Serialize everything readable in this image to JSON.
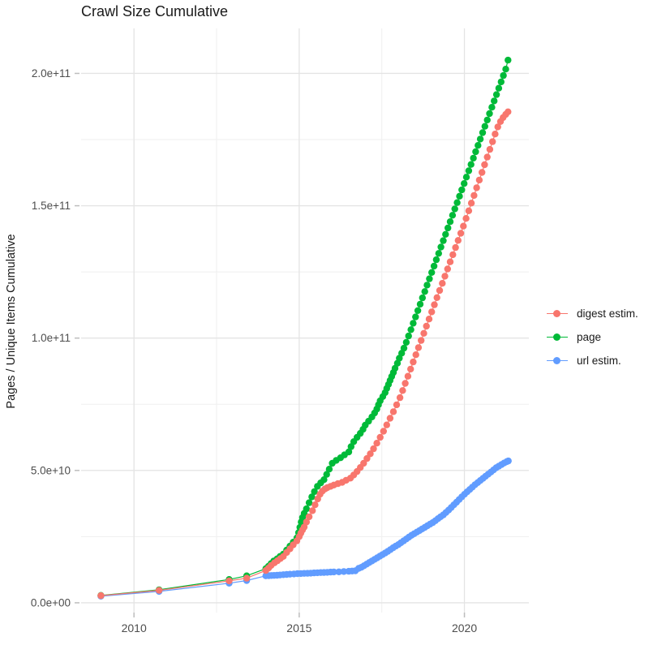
{
  "chart_data": {
    "type": "line",
    "title": "Crawl Size Cumulative",
    "xlabel": "",
    "ylabel": "Pages / Unique Items Cumulative",
    "legend_position": "right",
    "grid": true,
    "unit": "pages (values stored in billions, 1e9)",
    "x_domain": [
      2008.4,
      2021.95
    ],
    "y_domain_e9": [
      -3.7,
      217
    ],
    "x_ticks": [
      {
        "label": "2010",
        "year": 2010
      },
      {
        "label": "2015",
        "year": 2015
      },
      {
        "label": "2020",
        "year": 2020
      }
    ],
    "x_minor": [
      2012.5,
      2017.5
    ],
    "y_ticks": [
      {
        "label": "0.0e+00",
        "value_e9": 0
      },
      {
        "label": "5.0e+10",
        "value_e9": 50
      },
      {
        "label": "1.0e+11",
        "value_e9": 100
      },
      {
        "label": "1.5e+11",
        "value_e9": 150
      },
      {
        "label": "2.0e+11",
        "value_e9": 200
      }
    ],
    "y_minor_e9": [
      25,
      75,
      125,
      175
    ],
    "series": [
      {
        "name": "digest estim.",
        "color": "#F8766D",
        "points": [
          [
            2009.0,
            2.7
          ],
          [
            2010.76,
            4.7
          ],
          [
            2012.88,
            8.3
          ],
          [
            2013.41,
            9.3
          ],
          [
            2013.99,
            12.2
          ],
          [
            2014.07,
            13.1
          ],
          [
            2014.15,
            14.1
          ],
          [
            2014.25,
            15.1
          ],
          [
            2014.34,
            15.9
          ],
          [
            2014.43,
            16.7
          ],
          [
            2014.52,
            17.5
          ],
          [
            2014.62,
            19.0
          ],
          [
            2014.72,
            20.4
          ],
          [
            2014.82,
            21.9
          ],
          [
            2014.93,
            23.4
          ],
          [
            2015.0,
            25.0
          ],
          [
            2015.05,
            26.3
          ],
          [
            2015.1,
            27.5
          ],
          [
            2015.15,
            28.6
          ],
          [
            2015.22,
            30.5
          ],
          [
            2015.3,
            32.5
          ],
          [
            2015.4,
            34.8
          ],
          [
            2015.48,
            37.0
          ],
          [
            2015.56,
            39.2
          ],
          [
            2015.63,
            41.0
          ],
          [
            2015.7,
            42.2
          ],
          [
            2015.78,
            43.0
          ],
          [
            2015.85,
            43.5
          ],
          [
            2015.95,
            44.0
          ],
          [
            2016.05,
            44.5
          ],
          [
            2016.17,
            45.0
          ],
          [
            2016.3,
            45.5
          ],
          [
            2016.42,
            46.3
          ],
          [
            2016.55,
            47.1
          ],
          [
            2016.65,
            48.3
          ],
          [
            2016.75,
            49.6
          ],
          [
            2016.85,
            51.1
          ],
          [
            2016.95,
            52.7
          ],
          [
            2017.05,
            54.5
          ],
          [
            2017.15,
            56.3
          ],
          [
            2017.25,
            58.2
          ],
          [
            2017.35,
            60.3
          ],
          [
            2017.45,
            62.5
          ],
          [
            2017.55,
            64.8
          ],
          [
            2017.65,
            67.2
          ],
          [
            2017.75,
            69.7
          ],
          [
            2017.85,
            72.2
          ],
          [
            2017.95,
            74.8
          ],
          [
            2018.05,
            77.5
          ],
          [
            2018.13,
            80.2
          ],
          [
            2018.21,
            82.9
          ],
          [
            2018.29,
            85.6
          ],
          [
            2018.37,
            88.3
          ],
          [
            2018.45,
            91.0
          ],
          [
            2018.53,
            93.7
          ],
          [
            2018.61,
            96.4
          ],
          [
            2018.69,
            99.1
          ],
          [
            2018.77,
            101.8
          ],
          [
            2018.85,
            104.5
          ],
          [
            2018.93,
            107.2
          ],
          [
            2019.01,
            109.9
          ],
          [
            2019.09,
            112.6
          ],
          [
            2019.17,
            115.3
          ],
          [
            2019.25,
            118.0
          ],
          [
            2019.33,
            120.7
          ],
          [
            2019.41,
            123.4
          ],
          [
            2019.49,
            126.1
          ],
          [
            2019.57,
            128.8
          ],
          [
            2019.65,
            131.5
          ],
          [
            2019.73,
            134.2
          ],
          [
            2019.81,
            136.9
          ],
          [
            2019.89,
            139.6
          ],
          [
            2019.97,
            142.3
          ],
          [
            2020.05,
            145.2
          ],
          [
            2020.13,
            148.1
          ],
          [
            2020.21,
            151.0
          ],
          [
            2020.29,
            153.9
          ],
          [
            2020.37,
            156.8
          ],
          [
            2020.45,
            159.7
          ],
          [
            2020.53,
            162.6
          ],
          [
            2020.61,
            165.5
          ],
          [
            2020.69,
            168.4
          ],
          [
            2020.77,
            171.3
          ],
          [
            2020.85,
            174.2
          ],
          [
            2020.93,
            177.1
          ],
          [
            2021.01,
            179.8
          ],
          [
            2021.09,
            181.8
          ],
          [
            2021.17,
            183.3
          ],
          [
            2021.25,
            184.5
          ],
          [
            2021.32,
            185.5
          ]
        ]
      },
      {
        "name": "page",
        "color": "#00BA38",
        "points": [
          [
            2009.0,
            2.8
          ],
          [
            2010.76,
            4.9
          ],
          [
            2012.88,
            8.8
          ],
          [
            2013.41,
            10.2
          ],
          [
            2013.99,
            12.9
          ],
          [
            2014.07,
            13.8
          ],
          [
            2014.15,
            14.8
          ],
          [
            2014.23,
            15.8
          ],
          [
            2014.33,
            16.6
          ],
          [
            2014.42,
            17.5
          ],
          [
            2014.52,
            18.4
          ],
          [
            2014.62,
            19.9
          ],
          [
            2014.72,
            21.4
          ],
          [
            2014.82,
            22.9
          ],
          [
            2014.93,
            24.5
          ],
          [
            2014.98,
            26.5
          ],
          [
            2015.02,
            28.5
          ],
          [
            2015.06,
            30.5
          ],
          [
            2015.1,
            32.2
          ],
          [
            2015.15,
            33.8
          ],
          [
            2015.22,
            35.5
          ],
          [
            2015.3,
            37.8
          ],
          [
            2015.38,
            40.0
          ],
          [
            2015.46,
            42.0
          ],
          [
            2015.55,
            44.0
          ],
          [
            2015.65,
            45.3
          ],
          [
            2015.75,
            46.5
          ],
          [
            2015.83,
            48.5
          ],
          [
            2015.91,
            50.5
          ],
          [
            2016.0,
            52.7
          ],
          [
            2016.12,
            53.8
          ],
          [
            2016.25,
            54.8
          ],
          [
            2016.37,
            55.9
          ],
          [
            2016.5,
            57.0
          ],
          [
            2016.57,
            59.0
          ],
          [
            2016.65,
            60.9
          ],
          [
            2016.75,
            62.5
          ],
          [
            2016.85,
            64.0
          ],
          [
            2016.93,
            65.5
          ],
          [
            2017.0,
            67.1
          ],
          [
            2017.1,
            68.6
          ],
          [
            2017.2,
            70.2
          ],
          [
            2017.28,
            71.7
          ],
          [
            2017.35,
            73.2
          ],
          [
            2017.4,
            74.8
          ],
          [
            2017.45,
            76.3
          ],
          [
            2017.53,
            77.9
          ],
          [
            2017.6,
            79.4
          ],
          [
            2017.65,
            81.0
          ],
          [
            2017.7,
            82.5
          ],
          [
            2017.75,
            84.0
          ],
          [
            2017.8,
            85.5
          ],
          [
            2017.85,
            87.0
          ],
          [
            2017.9,
            88.6
          ],
          [
            2017.97,
            90.5
          ],
          [
            2018.03,
            92.4
          ],
          [
            2018.1,
            94.3
          ],
          [
            2018.17,
            96.2
          ],
          [
            2018.24,
            98.4
          ],
          [
            2018.31,
            100.8
          ],
          [
            2018.38,
            103.2
          ],
          [
            2018.45,
            105.6
          ],
          [
            2018.52,
            108.0
          ],
          [
            2018.59,
            110.4
          ],
          [
            2018.66,
            112.8
          ],
          [
            2018.73,
            115.2
          ],
          [
            2018.8,
            117.6
          ],
          [
            2018.87,
            120.0
          ],
          [
            2018.94,
            122.4
          ],
          [
            2019.01,
            124.8
          ],
          [
            2019.08,
            127.2
          ],
          [
            2019.15,
            129.6
          ],
          [
            2019.22,
            132.0
          ],
          [
            2019.29,
            134.4
          ],
          [
            2019.36,
            136.8
          ],
          [
            2019.43,
            139.2
          ],
          [
            2019.5,
            141.6
          ],
          [
            2019.57,
            144.0
          ],
          [
            2019.64,
            146.4
          ],
          [
            2019.71,
            148.8
          ],
          [
            2019.78,
            151.2
          ],
          [
            2019.85,
            153.6
          ],
          [
            2019.92,
            156.0
          ],
          [
            2019.99,
            158.4
          ],
          [
            2020.06,
            160.8
          ],
          [
            2020.13,
            163.2
          ],
          [
            2020.2,
            165.6
          ],
          [
            2020.27,
            168.0
          ],
          [
            2020.34,
            170.4
          ],
          [
            2020.41,
            172.8
          ],
          [
            2020.48,
            175.2
          ],
          [
            2020.55,
            177.6
          ],
          [
            2020.62,
            180.0
          ],
          [
            2020.69,
            182.4
          ],
          [
            2020.76,
            184.8
          ],
          [
            2020.83,
            187.2
          ],
          [
            2020.9,
            189.6
          ],
          [
            2020.97,
            192.0
          ],
          [
            2021.04,
            194.4
          ],
          [
            2021.11,
            196.8
          ],
          [
            2021.18,
            199.2
          ],
          [
            2021.25,
            201.6
          ],
          [
            2021.32,
            205.0
          ]
        ]
      },
      {
        "name": "url estim.",
        "color": "#619CFF",
        "points": [
          [
            2009.0,
            2.5
          ],
          [
            2010.76,
            4.3
          ],
          [
            2012.88,
            7.4
          ],
          [
            2013.41,
            8.4
          ],
          [
            2013.99,
            10.2
          ],
          [
            2014.08,
            10.25
          ],
          [
            2014.16,
            10.3
          ],
          [
            2014.24,
            10.35
          ],
          [
            2014.33,
            10.4
          ],
          [
            2014.42,
            10.5
          ],
          [
            2014.52,
            10.6
          ],
          [
            2014.62,
            10.7
          ],
          [
            2014.72,
            10.8
          ],
          [
            2014.84,
            10.9
          ],
          [
            2014.95,
            11.0
          ],
          [
            2015.05,
            11.05
          ],
          [
            2015.15,
            11.1
          ],
          [
            2015.25,
            11.15
          ],
          [
            2015.35,
            11.2
          ],
          [
            2015.45,
            11.3
          ],
          [
            2015.55,
            11.35
          ],
          [
            2015.65,
            11.4
          ],
          [
            2015.75,
            11.45
          ],
          [
            2015.85,
            11.5
          ],
          [
            2015.95,
            11.6
          ],
          [
            2016.05,
            11.65
          ],
          [
            2016.2,
            11.7
          ],
          [
            2016.35,
            11.8
          ],
          [
            2016.5,
            11.9
          ],
          [
            2016.6,
            12.0
          ],
          [
            2016.7,
            12.1
          ],
          [
            2016.8,
            13.0
          ],
          [
            2016.88,
            13.4
          ],
          [
            2016.96,
            14.0
          ],
          [
            2017.04,
            14.6
          ],
          [
            2017.12,
            15.2
          ],
          [
            2017.2,
            15.8
          ],
          [
            2017.28,
            16.4
          ],
          [
            2017.36,
            17.0
          ],
          [
            2017.44,
            17.6
          ],
          [
            2017.52,
            18.2
          ],
          [
            2017.6,
            18.8
          ],
          [
            2017.68,
            19.4
          ],
          [
            2017.76,
            20.1
          ],
          [
            2017.84,
            20.8
          ],
          [
            2017.92,
            21.4
          ],
          [
            2018.0,
            22.0
          ],
          [
            2018.08,
            22.7
          ],
          [
            2018.16,
            23.4
          ],
          [
            2018.24,
            24.1
          ],
          [
            2018.32,
            24.8
          ],
          [
            2018.4,
            25.5
          ],
          [
            2018.48,
            26.1
          ],
          [
            2018.56,
            26.7
          ],
          [
            2018.64,
            27.3
          ],
          [
            2018.72,
            27.9
          ],
          [
            2018.8,
            28.5
          ],
          [
            2018.88,
            29.1
          ],
          [
            2018.96,
            29.7
          ],
          [
            2019.04,
            30.3
          ],
          [
            2019.12,
            31.0
          ],
          [
            2019.2,
            31.8
          ],
          [
            2019.28,
            32.5
          ],
          [
            2019.36,
            33.2
          ],
          [
            2019.44,
            34.1
          ],
          [
            2019.52,
            35.0
          ],
          [
            2019.6,
            36.0
          ],
          [
            2019.68,
            37.0
          ],
          [
            2019.76,
            38.0
          ],
          [
            2019.84,
            39.0
          ],
          [
            2019.92,
            40.0
          ],
          [
            2020.0,
            41.0
          ],
          [
            2020.08,
            41.9
          ],
          [
            2020.16,
            42.8
          ],
          [
            2020.24,
            43.7
          ],
          [
            2020.32,
            44.6
          ],
          [
            2020.4,
            45.4
          ],
          [
            2020.48,
            46.2
          ],
          [
            2020.56,
            47.0
          ],
          [
            2020.64,
            47.8
          ],
          [
            2020.72,
            48.6
          ],
          [
            2020.8,
            49.4
          ],
          [
            2020.88,
            50.2
          ],
          [
            2020.96,
            51.0
          ],
          [
            2021.04,
            51.6
          ],
          [
            2021.12,
            52.2
          ],
          [
            2021.2,
            52.8
          ],
          [
            2021.28,
            53.3
          ],
          [
            2021.33,
            53.6
          ]
        ]
      }
    ],
    "legend": [
      {
        "label": "digest estim.",
        "color": "#F8766D"
      },
      {
        "label": "page",
        "color": "#00BA38"
      },
      {
        "label": "url estim.",
        "color": "#619CFF"
      }
    ]
  },
  "style": {
    "tick_label_color": "#4d4d4d",
    "grid_major_color": "#e4e4e4",
    "grid_minor_color": "#efefef",
    "tick_mark_color": "#bdbdbd"
  }
}
